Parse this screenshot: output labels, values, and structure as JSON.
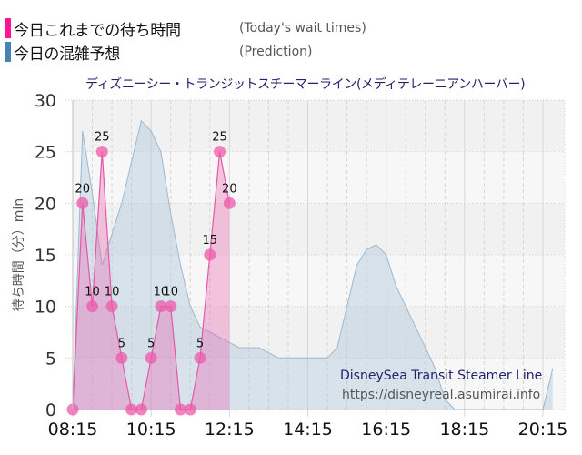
{
  "legend": {
    "items": [
      {
        "label": "今日これまでの待ち時間",
        "en": "(Today's wait times)",
        "color": "#ff1493"
      },
      {
        "label": "今日の混雑予想",
        "en": "(Prediction)",
        "color": "#4682b4"
      }
    ]
  },
  "title": "ディズニーシー・トランジットスチーマーライン(メディテレーニアンハーバー)",
  "ylabel": "待ち時間（分）min",
  "watermark": {
    "name": "DisneySea Transit Steamer Line",
    "url": "https://disneyreal.asumirai.info"
  },
  "chart_data": {
    "type": "area",
    "title": "ディズニーシー・トランジットスチーマーライン(メディテレーニアンハーバー)",
    "xlabel": "",
    "ylabel": "待ち時間（分）min",
    "ylim": [
      0,
      30
    ],
    "yticks": [
      0,
      5,
      10,
      15,
      20,
      25,
      30
    ],
    "xticks": [
      "08:15",
      "10:15",
      "12:15",
      "14:15",
      "16:15",
      "18:15",
      "20:15"
    ],
    "xrange": [
      "08:15",
      "20:30"
    ],
    "grid": true,
    "legend_position": "top-left",
    "series": [
      {
        "name": "今日これまでの待ち時間 (Today's wait times)",
        "color": "#ff1493",
        "x": [
          "08:15",
          "08:30",
          "08:45",
          "09:00",
          "09:15",
          "09:30",
          "09:45",
          "10:00",
          "10:15",
          "10:30",
          "10:45",
          "11:00",
          "11:15",
          "11:30",
          "11:45",
          "12:00",
          "12:15"
        ],
        "x_minutes": [
          0,
          15,
          30,
          45,
          60,
          75,
          90,
          105,
          120,
          135,
          150,
          165,
          180,
          195,
          210,
          225,
          240
        ],
        "values": [
          0,
          20,
          10,
          25,
          10,
          5,
          0,
          0,
          5,
          10,
          10,
          0,
          0,
          5,
          15,
          25,
          20
        ],
        "labels_shown": [
          null,
          20,
          10,
          25,
          10,
          5,
          null,
          null,
          5,
          10,
          10,
          null,
          null,
          5,
          15,
          25,
          20
        ]
      },
      {
        "name": "今日の混雑予想 (Prediction)",
        "color": "#4682b4",
        "x_minutes": [
          0,
          15,
          30,
          45,
          60,
          75,
          90,
          105,
          120,
          135,
          150,
          165,
          180,
          195,
          210,
          225,
          240,
          255,
          270,
          285,
          300,
          315,
          330,
          345,
          360,
          375,
          390,
          405,
          420,
          435,
          450,
          465,
          480,
          495,
          510,
          525,
          540,
          555,
          570,
          585,
          600,
          615,
          630,
          645,
          660,
          675,
          690,
          705,
          720,
          735
        ],
        "values": [
          0,
          27,
          21,
          14,
          17,
          20,
          24,
          28,
          27,
          25,
          19,
          14,
          10,
          8,
          7.5,
          7,
          6.5,
          6,
          6,
          6,
          5.5,
          5,
          5,
          5,
          5,
          5,
          5,
          6,
          10,
          14,
          15.5,
          16,
          15,
          12,
          10,
          8,
          6,
          4,
          1,
          0,
          0,
          0,
          0,
          0,
          0,
          0,
          0,
          0,
          0,
          4
        ]
      }
    ]
  }
}
